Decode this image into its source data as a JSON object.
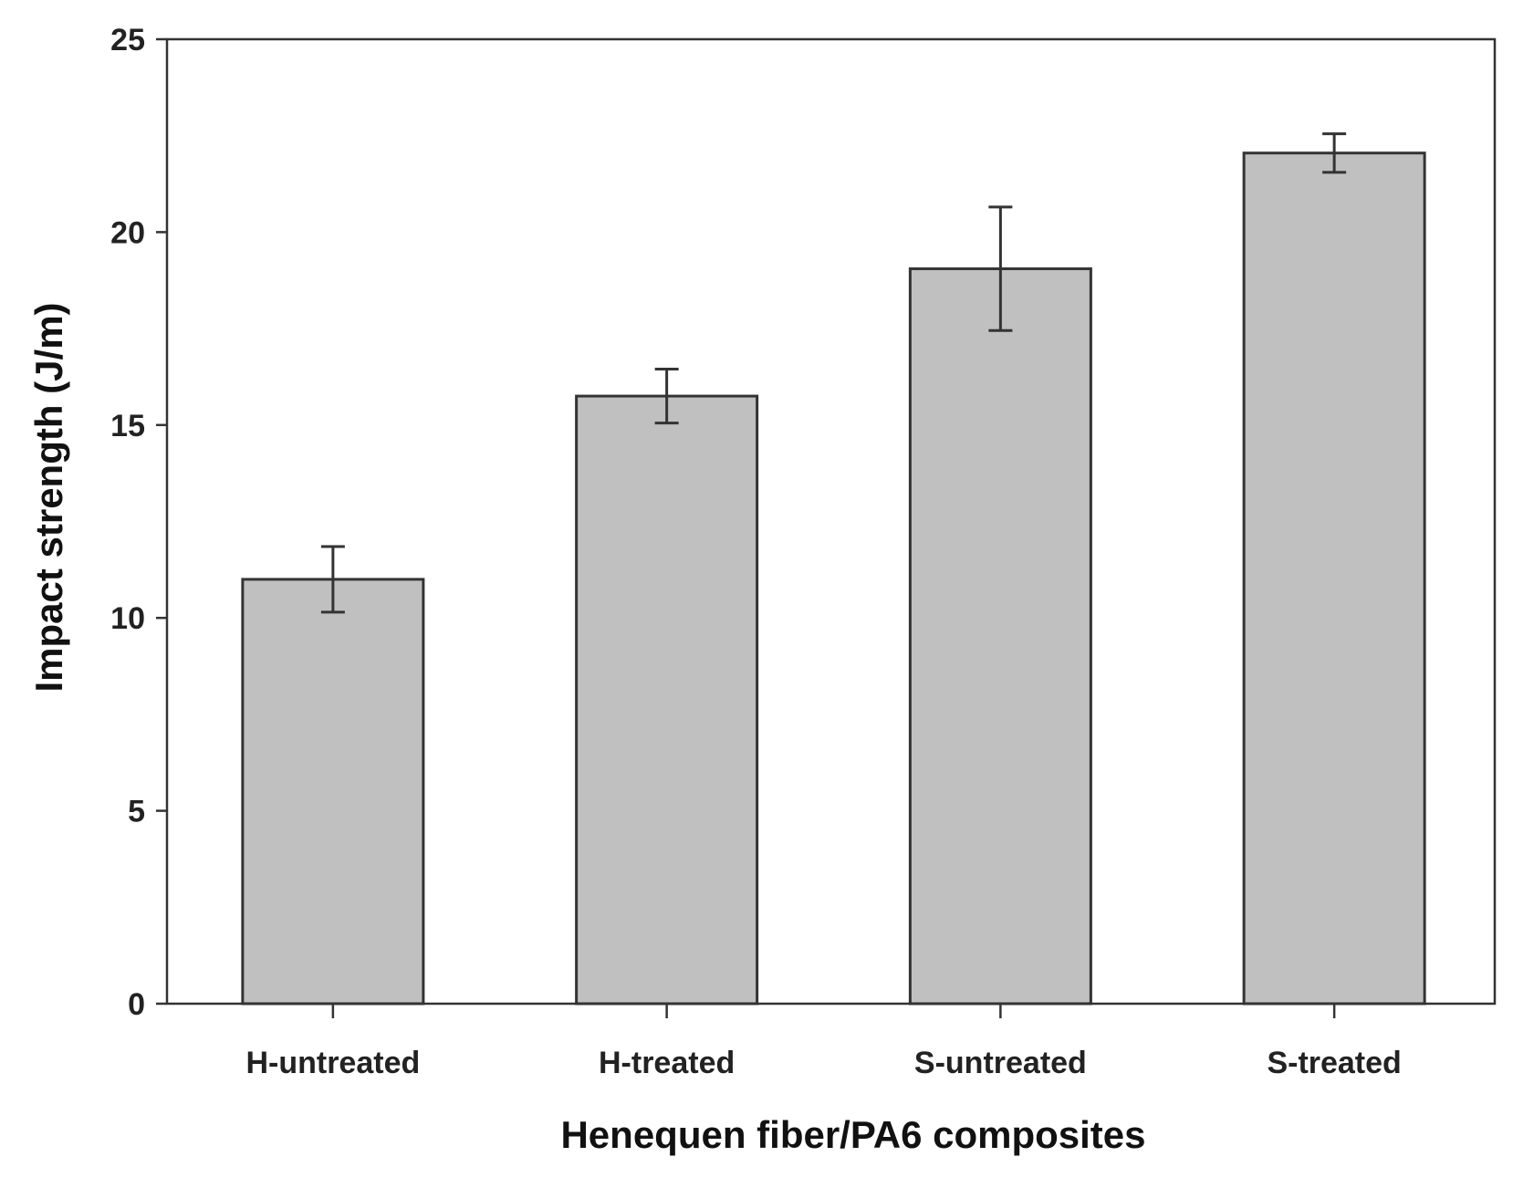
{
  "chart_data": {
    "type": "bar",
    "categories": [
      "H-untreated",
      "H-treated",
      "S-untreated",
      "S-treated"
    ],
    "series": [
      {
        "values": [
          11.0,
          15.75,
          19.05,
          22.05
        ],
        "error": [
          0.85,
          0.7,
          1.6,
          0.5
        ]
      }
    ],
    "title": "",
    "xlabel": "Henequen fiber/PA6 composites",
    "ylabel": "Impact strength (J/m)",
    "ylim": [
      0,
      25
    ],
    "yticks": [
      "0",
      "5",
      "10",
      "15",
      "20",
      "25"
    ],
    "grid": false,
    "legend": "none",
    "colors": {
      "bar_fill": "#c0c0c0",
      "bar_stroke": "#333333",
      "axis": "#333333",
      "error_bar": "#333333"
    }
  }
}
